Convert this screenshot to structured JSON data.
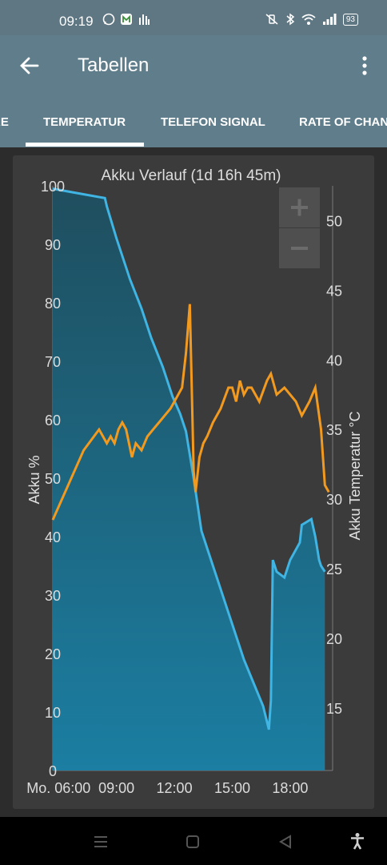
{
  "status_bar": {
    "time": "09:19",
    "battery": "93"
  },
  "app_bar": {
    "title": "Tabellen"
  },
  "tabs": [
    {
      "label": "RE"
    },
    {
      "label": "TEMPERATUR"
    },
    {
      "label": "TELEFON SIGNAL"
    },
    {
      "label": "RATE OF CHANGE"
    }
  ],
  "chart_data": {
    "type": "line",
    "title": "Akku Verlauf (1d 16h 45m)",
    "ylabel": "Akku %",
    "y2label": "Akku Temperatur °C",
    "ylim": [
      0,
      100
    ],
    "y2lim": [
      10.5,
      52.5
    ],
    "xlim": [
      5.7,
      20.2
    ],
    "x_ticks": [
      {
        "value": 6,
        "label": "Mo. 06:00"
      },
      {
        "value": 9,
        "label": "09:00"
      },
      {
        "value": 12,
        "label": "12:00"
      },
      {
        "value": 15,
        "label": "15:00"
      },
      {
        "value": 18,
        "label": "18:00"
      }
    ],
    "y_ticks": [
      0,
      10,
      20,
      30,
      40,
      50,
      60,
      70,
      80,
      90,
      100
    ],
    "y2_ticks": [
      15,
      20,
      25,
      30,
      35,
      40,
      45,
      50
    ],
    "series": [
      {
        "axis": "left",
        "color": "#40b4e2",
        "x": [
          5.7,
          7.4,
          8.4,
          8.5,
          9.0,
          9.7,
          10.3,
          10.8,
          11.4,
          11.9,
          12.3,
          12.6,
          13.0,
          13.4,
          13.8,
          14.4,
          15.0,
          15.6,
          16.1,
          16.6,
          16.9,
          17.0,
          17.1,
          17.3,
          17.7,
          18.0,
          18.5,
          18.6,
          19.1,
          19.3,
          19.5,
          19.6,
          19.8
        ],
        "values": [
          99.5,
          98.5,
          97.9,
          96.5,
          91,
          84,
          79,
          74,
          69,
          64,
          61,
          58,
          50,
          41,
          37,
          31,
          25,
          19,
          15,
          11,
          7,
          12,
          36,
          34,
          33,
          36,
          39,
          42,
          43,
          40,
          36,
          35,
          34
        ]
      },
      {
        "axis": "right",
        "color": "#f29a1f",
        "x": [
          5.7,
          6.5,
          7.3,
          8.1,
          8.5,
          8.7,
          8.9,
          9.1,
          9.3,
          9.5,
          9.8,
          10.0,
          10.3,
          10.6,
          10.9,
          11.2,
          11.5,
          11.8,
          12.0,
          12.2,
          12.4,
          12.6,
          12.8,
          12.9,
          13.0,
          13.1,
          13.3,
          13.5,
          13.7,
          14.0,
          14.4,
          14.8,
          15.0,
          15.2,
          15.4,
          15.6,
          15.8,
          16.0,
          16.4,
          16.8,
          17.0,
          17.3,
          17.7,
          18.0,
          18.3,
          18.6,
          18.8,
          19.0,
          19.3,
          19.6,
          19.8,
          20.0
        ],
        "values": [
          28.5,
          31,
          33.5,
          35,
          34,
          34.5,
          34,
          35,
          35.5,
          35,
          33,
          34,
          33.5,
          34.5,
          35,
          35.5,
          36,
          36.5,
          37,
          37.5,
          38,
          40.5,
          44,
          38,
          32,
          30.5,
          33,
          34,
          34.5,
          35.5,
          36.5,
          38,
          38,
          37,
          38.5,
          37.5,
          38,
          38,
          37,
          38.5,
          39,
          37.5,
          38,
          37.5,
          37,
          36,
          36.5,
          37,
          38,
          35,
          31,
          30.5
        ]
      }
    ]
  }
}
